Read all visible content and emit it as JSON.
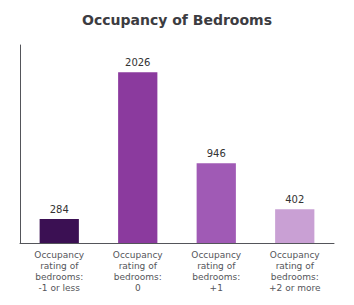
{
  "chart_data": {
    "type": "bar",
    "title": "Occupancy of Bedrooms",
    "categories": [
      "Occupancy\nrating of\nbedrooms:\n-1 or less",
      "Occupancy\nrating of\nbedrooms:\n0",
      "Occupancy\nrating of\nbedrooms:\n+1",
      "Occupancy\nrating of\nbedrooms:\n+2 or more"
    ],
    "values": [
      284,
      2026,
      946,
      402
    ],
    "colors": [
      "#3b1053",
      "#8b3a9e",
      "#a05ab5",
      "#c9a0d4"
    ],
    "ylim": [
      0,
      2350
    ],
    "grid": false,
    "data_labels": true,
    "tick_labels": "x"
  }
}
